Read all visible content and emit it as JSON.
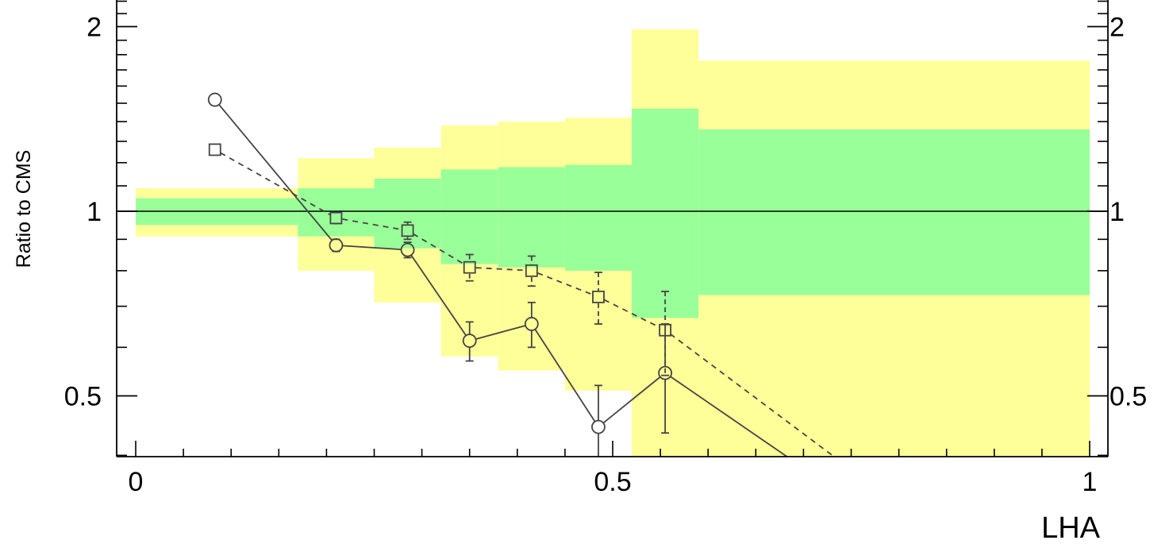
{
  "chart_data": {
    "type": "line",
    "xlabel": "LHA",
    "ylabel": "Ratio to CMS",
    "xlim": [
      0,
      1
    ],
    "ylim": [
      0.35,
      2.2
    ],
    "yscale": "log",
    "x_ticks": [
      {
        "value": 0,
        "label": "0"
      },
      {
        "value": 0.5,
        "label": "0.5"
      },
      {
        "value": 1,
        "label": "1"
      }
    ],
    "y_ticks": [
      {
        "value": 0.5,
        "label": "0.5"
      },
      {
        "value": 1,
        "label": "1"
      },
      {
        "value": 2,
        "label": "2"
      }
    ],
    "reference_line": 1,
    "bands": [
      {
        "x0": 0.0,
        "x1": 0.17,
        "green": [
          0.95,
          1.05
        ],
        "yellow": [
          0.91,
          1.09
        ]
      },
      {
        "x0": 0.17,
        "x1": 0.25,
        "green": [
          0.91,
          1.09
        ],
        "yellow": [
          0.8,
          1.22
        ]
      },
      {
        "x0": 0.25,
        "x1": 0.32,
        "green": [
          0.87,
          1.13
        ],
        "yellow": [
          0.71,
          1.27
        ]
      },
      {
        "x0": 0.32,
        "x1": 0.38,
        "green": [
          0.82,
          1.17
        ],
        "yellow": [
          0.58,
          1.38
        ]
      },
      {
        "x0": 0.38,
        "x1": 0.45,
        "green": [
          0.81,
          1.18
        ],
        "yellow": [
          0.55,
          1.4
        ]
      },
      {
        "x0": 0.45,
        "x1": 0.52,
        "green": [
          0.8,
          1.19
        ],
        "yellow": [
          0.51,
          1.42
        ]
      },
      {
        "x0": 0.52,
        "x1": 0.59,
        "green": [
          0.67,
          1.47
        ],
        "yellow": [
          0.35,
          1.98
        ]
      },
      {
        "x0": 0.59,
        "x1": 1.0,
        "green": [
          0.73,
          1.36
        ],
        "yellow": [
          0.35,
          1.76
        ]
      }
    ],
    "colors": {
      "green_band": "#99ff99",
      "yellow_band": "#ffff99",
      "markers": "#444444"
    },
    "series": [
      {
        "marker": "circle",
        "line": "solid",
        "points": [
          {
            "x": 0.083,
            "y": 1.52
          },
          {
            "x": 0.21,
            "y": 0.88,
            "err": 0.02
          },
          {
            "x": 0.285,
            "y": 0.865,
            "err": 0.025
          },
          {
            "x": 0.35,
            "y": 0.615,
            "err": 0.045
          },
          {
            "x": 0.415,
            "y": 0.655,
            "err": 0.055
          },
          {
            "x": 0.485,
            "y": 0.445,
            "err": 0.075
          },
          {
            "x": 0.555,
            "y": 0.545,
            "err": 0.11
          },
          {
            "x": 0.735,
            "y": 0.35
          }
        ]
      },
      {
        "marker": "square",
        "line": "dashed",
        "points": [
          {
            "x": 0.083,
            "y": 1.26
          },
          {
            "x": 0.21,
            "y": 0.975,
            "err": 0.02
          },
          {
            "x": 0.285,
            "y": 0.93,
            "err": 0.03
          },
          {
            "x": 0.35,
            "y": 0.81,
            "err": 0.04
          },
          {
            "x": 0.415,
            "y": 0.8,
            "err": 0.045
          },
          {
            "x": 0.485,
            "y": 0.725,
            "err": 0.07
          },
          {
            "x": 0.555,
            "y": 0.64,
            "err": 0.1
          },
          {
            "x": 0.78,
            "y": 0.35
          }
        ]
      }
    ]
  }
}
